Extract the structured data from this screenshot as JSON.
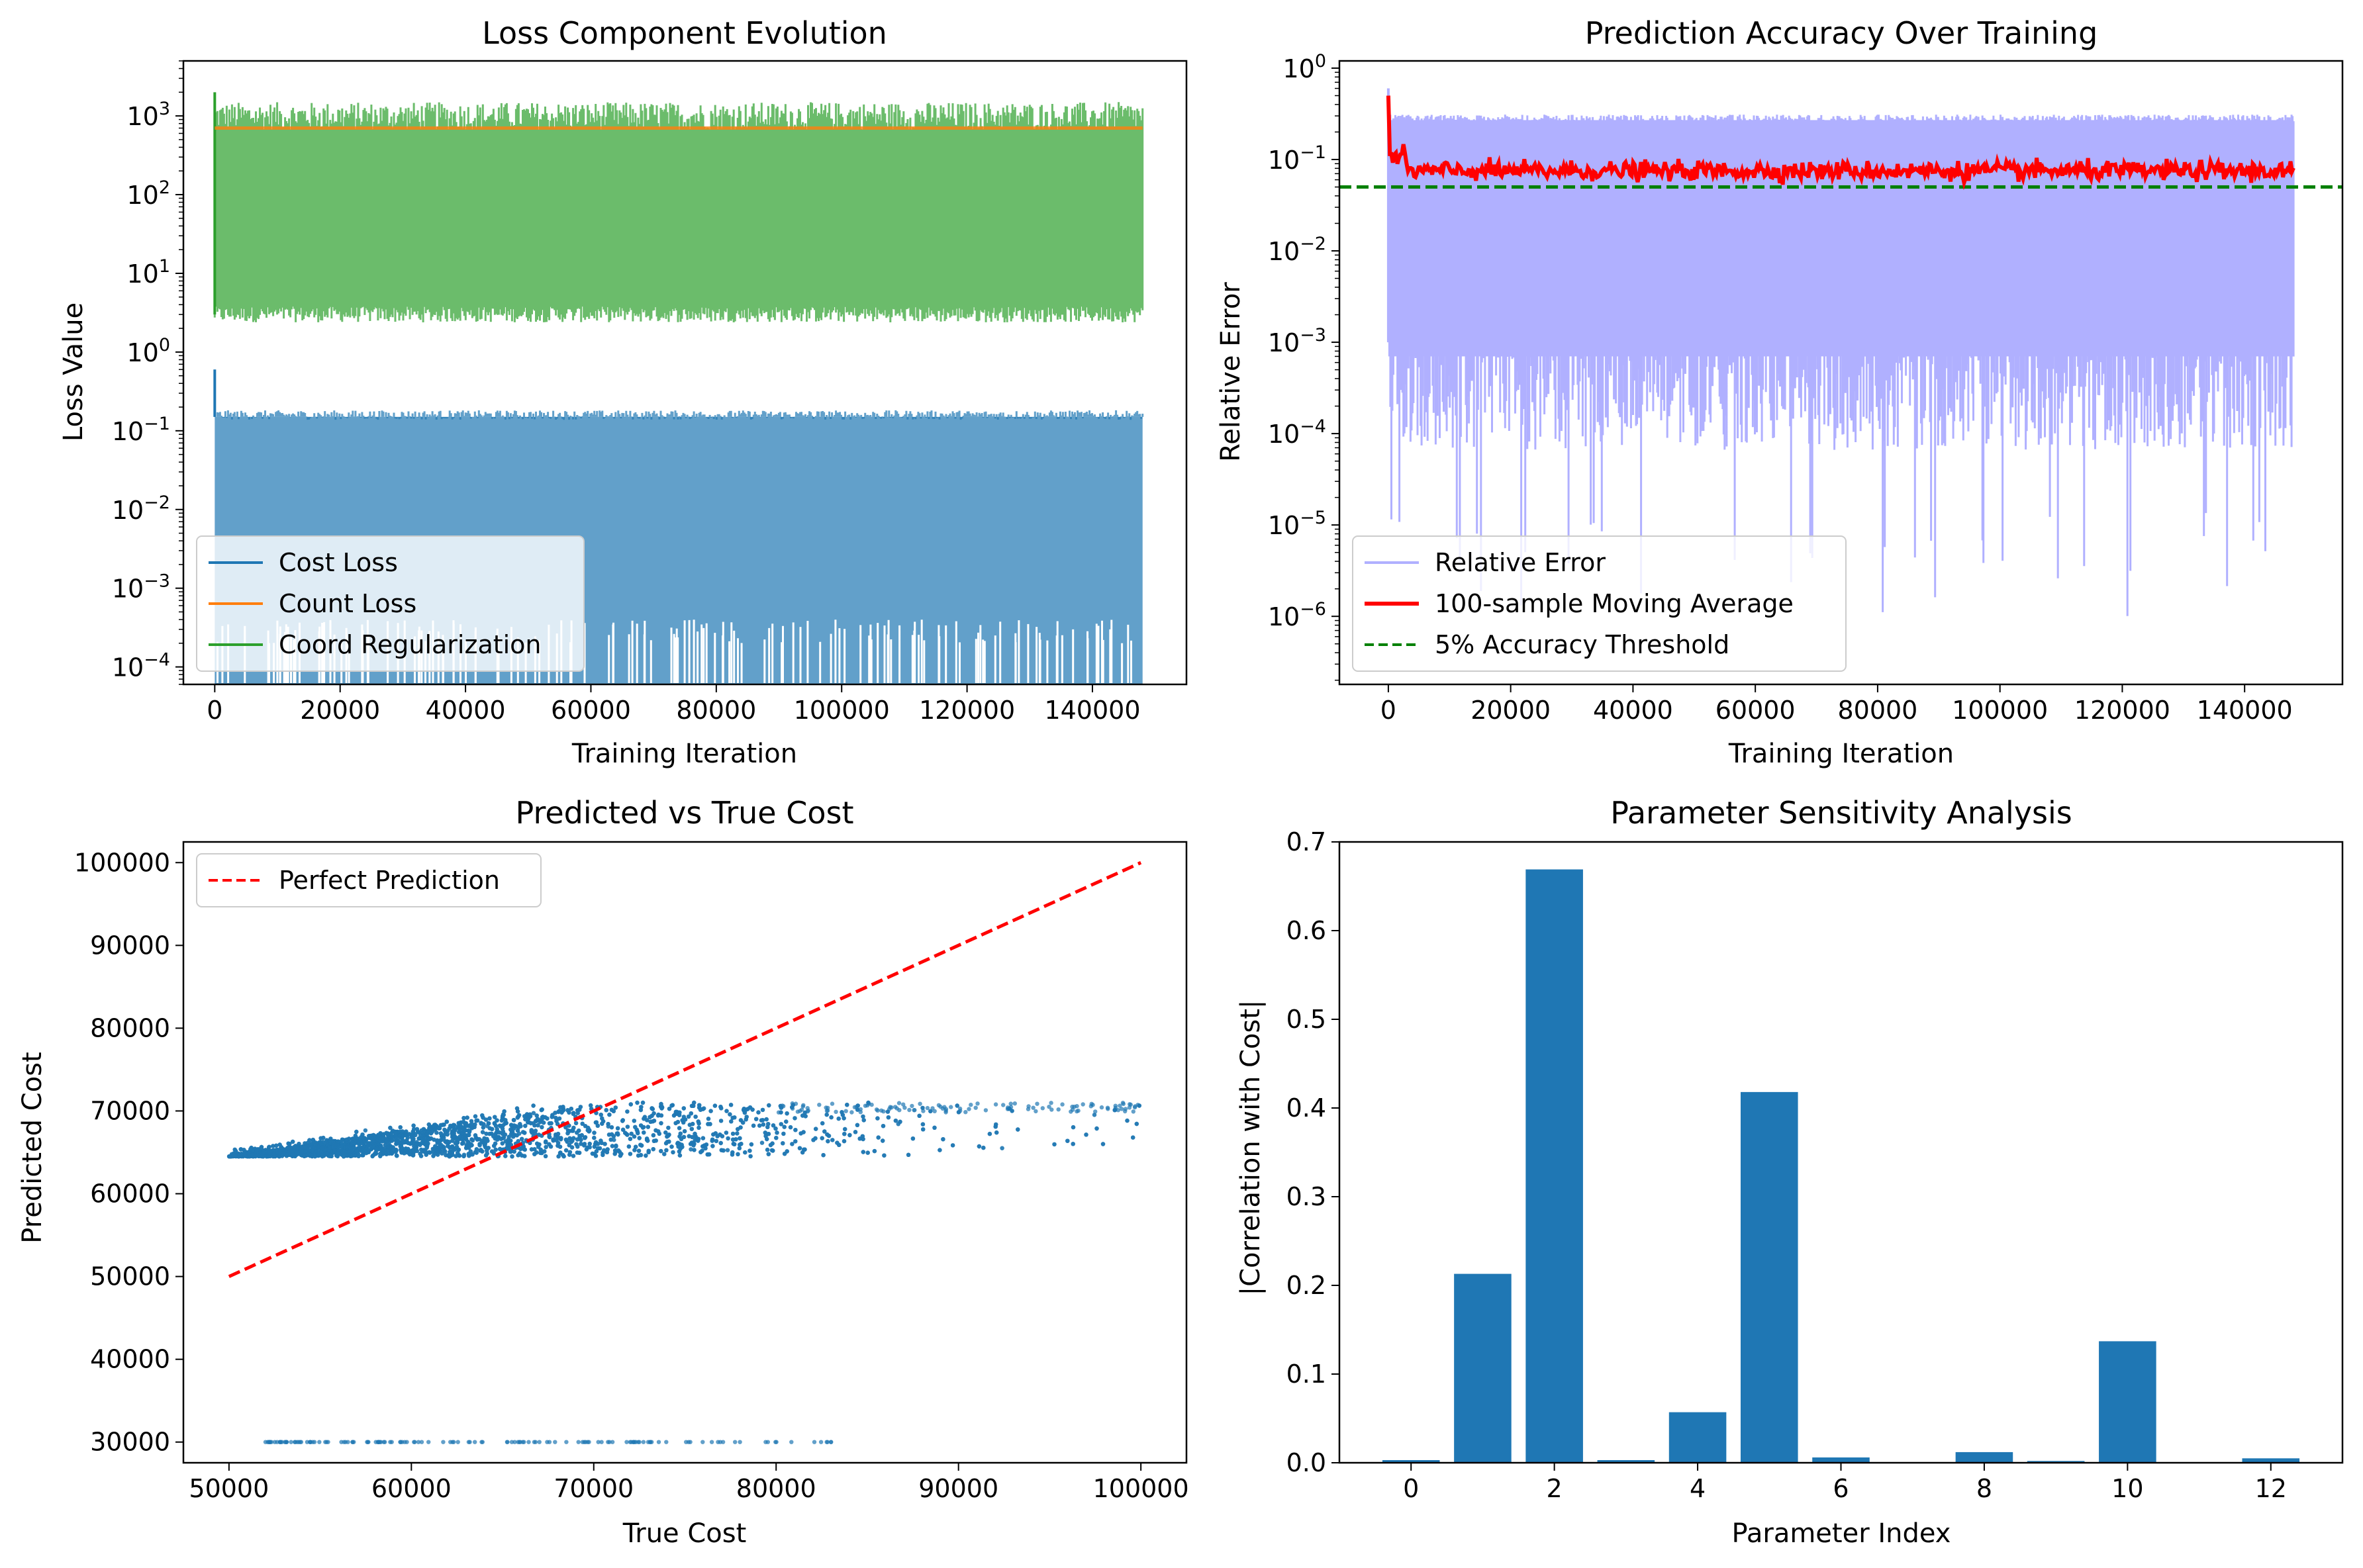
{
  "chart_data": [
    {
      "type": "line",
      "title": "Loss Component Evolution",
      "xlabel": "Training Iteration",
      "ylabel": "Loss Value",
      "yscale": "log",
      "xlim": [
        -5000,
        155000
      ],
      "ylim": [
        6e-05,
        5000
      ],
      "x_ticks": [
        "0",
        "20000",
        "40000",
        "60000",
        "80000",
        "100000",
        "120000",
        "140000"
      ],
      "y_ticks": [
        {
          "base": "10",
          "exp": "3"
        },
        {
          "base": "10",
          "exp": "2"
        },
        {
          "base": "10",
          "exp": "1"
        },
        {
          "base": "10",
          "exp": "0"
        },
        {
          "base": "10",
          "exp": "−1"
        },
        {
          "base": "10",
          "exp": "−2"
        },
        {
          "base": "10",
          "exp": "−3"
        },
        {
          "base": "10",
          "exp": "−4"
        }
      ],
      "legend_position": "lower-left",
      "x_range": [
        0,
        148000
      ],
      "series": [
        {
          "name": "Cost Loss",
          "color": "#1f77b4",
          "band_low": 5e-05,
          "band_high": 0.15,
          "initial_peak": 0.6
        },
        {
          "name": "Count Loss",
          "color": "#ff7f0e",
          "value": 700
        },
        {
          "name": "Coord Regularization",
          "color": "#2ca02c",
          "band_low": 3,
          "band_high": 1000,
          "initial_peak": 2000
        }
      ]
    },
    {
      "type": "line",
      "title": "Prediction Accuracy Over Training",
      "xlabel": "Training Iteration",
      "ylabel": "Relative Error",
      "yscale": "log",
      "xlim": [
        -8000,
        156000
      ],
      "ylim": [
        1.8e-07,
        1.2
      ],
      "x_ticks": [
        "0",
        "20000",
        "40000",
        "60000",
        "80000",
        "100000",
        "120000",
        "140000"
      ],
      "y_ticks": [
        {
          "base": "10",
          "exp": "0"
        },
        {
          "base": "10",
          "exp": "−1"
        },
        {
          "base": "10",
          "exp": "−2"
        },
        {
          "base": "10",
          "exp": "−3"
        },
        {
          "base": "10",
          "exp": "−4"
        },
        {
          "base": "10",
          "exp": "−5"
        },
        {
          "base": "10",
          "exp": "−6"
        }
      ],
      "legend_position": "lower-left",
      "x_range": [
        0,
        148000
      ],
      "series": [
        {
          "name": "Relative Error",
          "color": "#b0b0ff",
          "band_low": 0.0002,
          "band_high": 0.27,
          "initial_peak": 0.6
        },
        {
          "name": "100-sample Moving Average",
          "color": "#ff0000",
          "value": 0.075,
          "initial_peak": 0.5
        },
        {
          "name": "5% Accuracy Threshold",
          "color": "#008000",
          "value": 0.05,
          "style": "dashed"
        }
      ]
    },
    {
      "type": "scatter",
      "title": "Predicted vs True Cost",
      "xlabel": "True Cost",
      "ylabel": "Predicted Cost",
      "xlim": [
        47500,
        102500
      ],
      "ylim": [
        27500,
        102500
      ],
      "x_ticks": [
        "50000",
        "60000",
        "70000",
        "80000",
        "90000",
        "100000"
      ],
      "y_ticks": [
        "30000",
        "40000",
        "50000",
        "60000",
        "70000",
        "80000",
        "90000",
        "100000"
      ],
      "legend_position": "upper-left",
      "series": [
        {
          "name": "Perfect Prediction",
          "color": "#ff0000",
          "style": "dashed",
          "x": [
            50000,
            100000
          ],
          "y": [
            50000,
            100000
          ]
        },
        {
          "name": "",
          "color": "#1f77b4",
          "description_points": "dense cloud",
          "x_range": [
            50000,
            100000
          ],
          "y_range": [
            64500,
            71000
          ],
          "outliers_y": 30000,
          "outliers_x_range": [
            52000,
            83500
          ]
        }
      ]
    },
    {
      "type": "bar",
      "title": "Parameter Sensitivity Analysis",
      "xlabel": "Parameter Index",
      "ylabel": "|Correlation with Cost|",
      "xlim": [
        -1,
        13
      ],
      "ylim": [
        0,
        0.7
      ],
      "x_ticks": [
        "0",
        "2",
        "4",
        "6",
        "8",
        "10",
        "12"
      ],
      "y_ticks": [
        "0.0",
        "0.1",
        "0.2",
        "0.3",
        "0.4",
        "0.5",
        "0.6",
        "0.7"
      ],
      "categories": [
        0,
        1,
        2,
        3,
        4,
        5,
        6,
        7,
        8,
        9,
        10,
        11,
        12
      ],
      "values": [
        0.003,
        0.213,
        0.669,
        0.003,
        0.057,
        0.418,
        0.006,
        0.0005,
        0.012,
        0.002,
        0.137,
        0.0005,
        0.005
      ],
      "color": "#1f77b4"
    }
  ]
}
